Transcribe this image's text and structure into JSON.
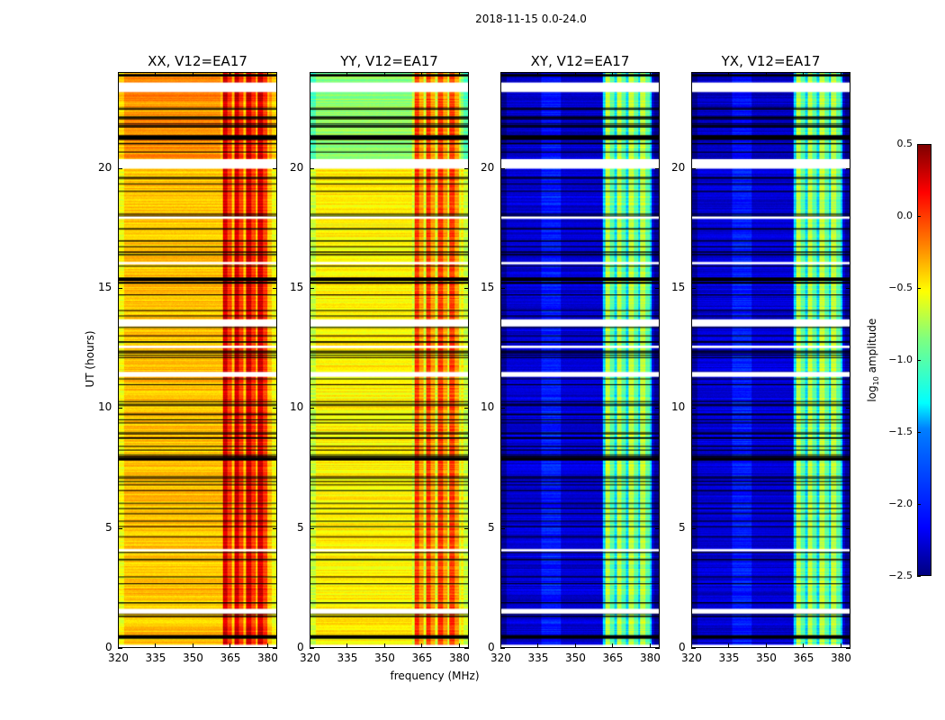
{
  "chart_data": {
    "type": "heatmap",
    "title": "2018-11-15 0.0-24.0",
    "xlabel": "frequency (MHz)",
    "ylabel": "UT (hours)",
    "xlim": [
      320,
      384
    ],
    "ylim": [
      0,
      24
    ],
    "xticks": [
      320,
      335,
      350,
      365,
      380
    ],
    "yticks": [
      0,
      5,
      10,
      15,
      20
    ],
    "colorbar": {
      "label_main": "log",
      "label_sub": "10",
      "label_rest": " amplitude",
      "range": [
        -2.5,
        0.5
      ],
      "ticks": [
        "0.5",
        "0.0",
        "−0.5",
        "−1.0",
        "−1.5",
        "−2.0",
        "−2.5"
      ],
      "tick_values": [
        0.5,
        0,
        -0.5,
        -1,
        -1.5,
        -2,
        -2.5
      ]
    },
    "rfi_band_mhz": [
      361,
      381
    ],
    "flagged_white_hours": [
      [
        23.2,
        23.6
      ],
      [
        20.0,
        20.4
      ],
      [
        17.9,
        18.0
      ],
      [
        16.0,
        16.1
      ],
      [
        13.4,
        13.7
      ],
      [
        12.5,
        12.6
      ],
      [
        11.3,
        11.5
      ],
      [
        4.0,
        4.1
      ],
      [
        1.4,
        1.6
      ],
      [
        0.0,
        0.1
      ]
    ],
    "flagged_black_hours": [
      [
        23.85,
        23.95
      ],
      [
        21.2,
        21.4
      ],
      [
        15.3,
        15.45
      ],
      [
        7.8,
        7.9
      ],
      [
        0.35,
        0.5
      ]
    ],
    "panels": [
      {
        "title": "XX, V12=EA17",
        "baseline_level": -0.45,
        "rfi_level": 0.15,
        "late_level": -0.3
      },
      {
        "title": "YY, V12=EA17",
        "baseline_level": -0.6,
        "rfi_level": -0.15,
        "late_level": -0.95
      },
      {
        "title": "XY, V12=EA17",
        "baseline_level": -2.25,
        "rfi_level": -0.9,
        "late_level": -2.3
      },
      {
        "title": "YX, V12=EA17",
        "baseline_level": -2.25,
        "rfi_level": -0.9,
        "late_level": -2.3
      }
    ]
  }
}
